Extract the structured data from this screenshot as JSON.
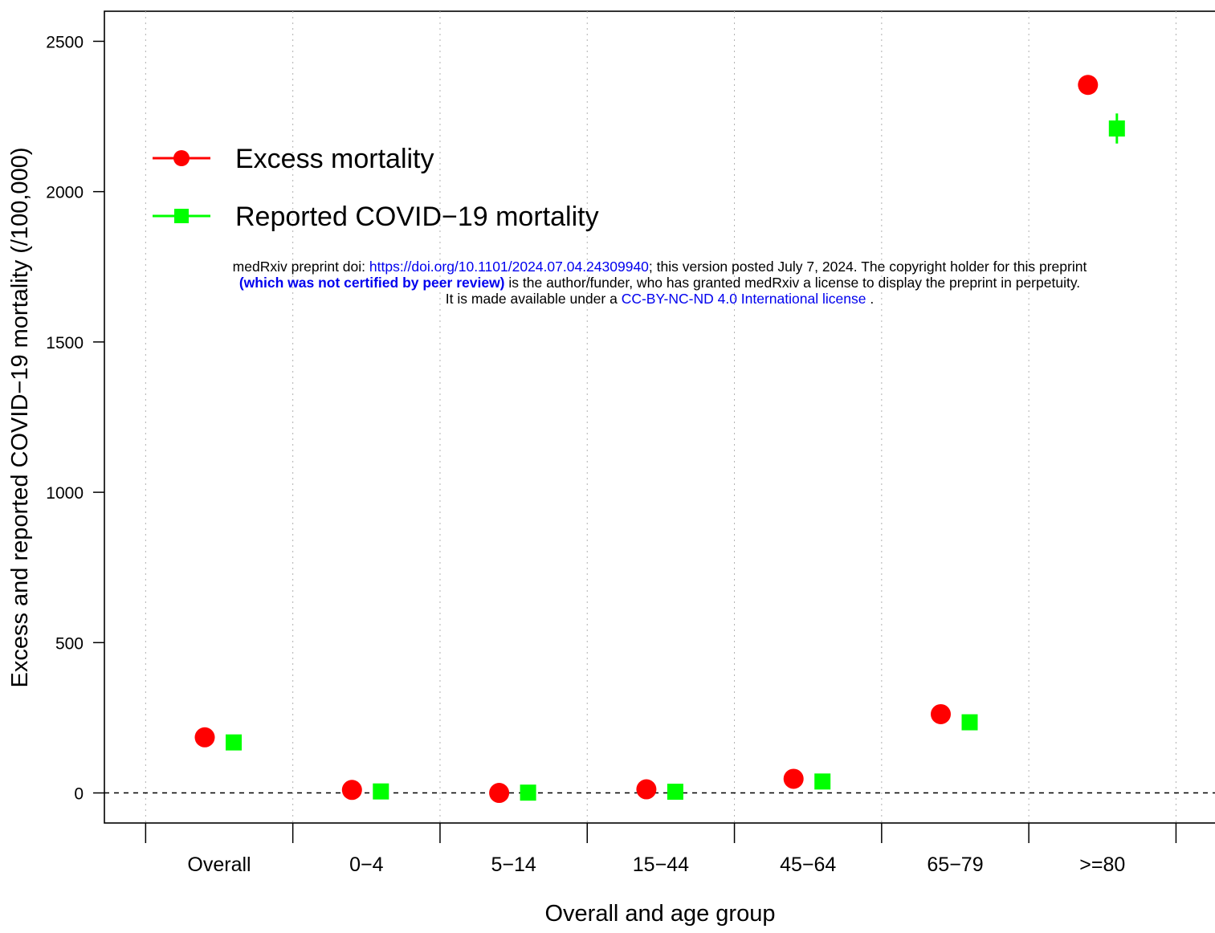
{
  "chart_data": {
    "type": "scatter",
    "xlabel": "Overall and age group",
    "ylabel": "Excess and reported COVID−19 mortality (/100,000)",
    "categories": [
      "Overall",
      "0−4",
      "5−14",
      "15−44",
      "45−64",
      "65−79",
      ">=80"
    ],
    "ylim": [
      -100,
      2600
    ],
    "yticks": [
      0,
      500,
      1000,
      1500,
      2000,
      2500
    ],
    "ytick_labels": [
      "0",
      "500",
      "1000",
      "1500",
      "2000",
      "2500"
    ],
    "reference_line": 0,
    "grid": "vertical dotted",
    "legend_position": "top-left",
    "series": [
      {
        "name": "Excess mortality",
        "color": "#ff0000",
        "marker": "circle",
        "values": [
          185,
          10,
          0,
          12,
          47,
          262,
          2355
        ]
      },
      {
        "name": "Reported COVID−19 mortality",
        "color": "#00ff00",
        "marker": "square",
        "values": [
          168,
          5,
          1,
          4,
          38,
          235,
          2210
        ],
        "error_bars": [
          null,
          null,
          null,
          null,
          null,
          null,
          [
            2160,
            2260
          ]
        ]
      }
    ]
  },
  "watermark": {
    "line1_prefix": "medRxiv preprint doi: ",
    "line1_link": "https://doi.org/10.1101/2024.07.04.24309940",
    "line1_suffix": "; this version posted July 7, 2024. The copyright holder for this preprint",
    "line2_bold": "(which was not certified by peer review)",
    "line2_rest": " is the author/funder, who has granted medRxiv a license to display the preprint in perpetuity.",
    "line3_prefix": "It is made available under a ",
    "line3_link": "CC-BY-NC-ND 4.0 International license",
    "line3_suffix": " ."
  }
}
